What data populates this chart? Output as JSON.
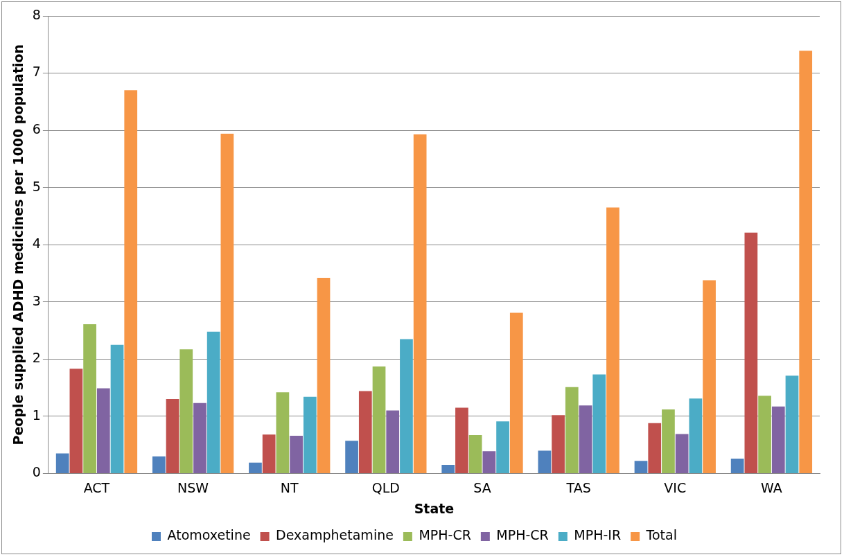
{
  "chart_data": {
    "type": "bar",
    "xlabel": "State",
    "ylabel": "People supplied ADHD medicines per 1000 population",
    "categories": [
      "ACT",
      "NSW",
      "NT",
      "QLD",
      "SA",
      "TAS",
      "VIC",
      "WA"
    ],
    "series": [
      {
        "name": "Atomoxetine",
        "color": "#4f81bd",
        "values": [
          0.35,
          0.3,
          0.19,
          0.57,
          0.15,
          0.4,
          0.22,
          0.26
        ]
      },
      {
        "name": "Dexamphetamine",
        "color": "#c0504d",
        "values": [
          1.83,
          1.3,
          0.68,
          1.44,
          1.15,
          1.02,
          0.88,
          4.21
        ]
      },
      {
        "name": "MPH-CR",
        "color": "#9bbb59",
        "values": [
          2.61,
          2.17,
          1.42,
          1.87,
          0.67,
          1.51,
          1.12,
          1.36
        ]
      },
      {
        "name": "MPH-CR",
        "color": "#8064a2",
        "values": [
          1.49,
          1.23,
          0.66,
          1.1,
          0.39,
          1.19,
          0.69,
          1.17
        ]
      },
      {
        "name": "MPH-IR",
        "color": "#4bacc6",
        "values": [
          2.25,
          2.48,
          1.34,
          2.35,
          0.91,
          1.73,
          1.31,
          1.71
        ]
      },
      {
        "name": "Total",
        "color": "#f79646",
        "values": [
          6.7,
          5.94,
          3.42,
          5.93,
          2.81,
          4.65,
          3.38,
          7.39
        ]
      }
    ],
    "ylim": [
      0,
      8
    ],
    "yticks": [
      0,
      1,
      2,
      3,
      4,
      5,
      6,
      7,
      8
    ],
    "grid": "y",
    "legend": "bottom"
  }
}
